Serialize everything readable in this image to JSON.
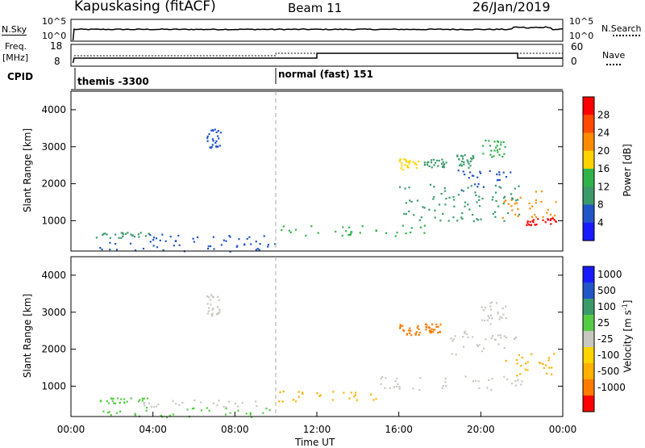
{
  "header": {
    "title": "Kapuskasing (fitACF)",
    "beam": "Beam 11",
    "date": "26/Jan/2019"
  },
  "top_panels": {
    "nsky_label": "N.Sky",
    "nsky_ticks": [
      "10^5",
      "10^0"
    ],
    "nsearch_label": "N.Search",
    "nsearch_ticks": [
      "10^5",
      "10^0"
    ],
    "freq_label_1": "Freq.",
    "freq_label_2": "[MHz]",
    "freq_ticks": [
      "18",
      "8"
    ],
    "nave_label": "Nave",
    "nave_ticks": [
      "60",
      "0"
    ],
    "cpid_label": "CPID",
    "cpid_segments": [
      {
        "start_hour": 0,
        "label": "themis -3300"
      },
      {
        "start_hour": 10,
        "label": "normal (fast) 151"
      }
    ]
  },
  "chart_data": [
    {
      "type": "heatmap",
      "name": "power-panel",
      "ylabel": "Slant Range [km]",
      "xlim": [
        0,
        24
      ],
      "ylim": [
        180,
        4500
      ],
      "y_ticks": [
        "1000",
        "2000",
        "3000",
        "4000"
      ],
      "colorbar": {
        "label": "Power [dB]",
        "ticks": [
          "4",
          "8",
          "12",
          "16",
          "20",
          "24",
          "28"
        ],
        "colors": [
          "#1a1aff",
          "#2255c8",
          "#3a9a6a",
          "#2fb34a",
          "#ffd400",
          "#ff8c00",
          "#ff4a00",
          "#ff0000"
        ]
      },
      "scatter_regions": [
        {
          "x": [
            1.1,
            10.0
          ],
          "y": [
            180,
            450
          ],
          "color": "#2255c8"
        },
        {
          "x": [
            1.2,
            3.8
          ],
          "y": [
            550,
            700
          ],
          "color": "#3a9a6a"
        },
        {
          "x": [
            3.5,
            9.5
          ],
          "y": [
            450,
            650
          ],
          "color": "#2255c8"
        },
        {
          "x": [
            10.0,
            17.5
          ],
          "y": [
            600,
            900
          ],
          "color": "#2fb34a"
        },
        {
          "x": [
            16.0,
            17.0
          ],
          "y": [
            2400,
            2700
          ],
          "color": "#ffd400"
        },
        {
          "x": [
            17.2,
            18.3
          ],
          "y": [
            2450,
            2700
          ],
          "color": "#3a9a6a"
        },
        {
          "x": [
            18.8,
            19.6
          ],
          "y": [
            2450,
            2800
          ],
          "color": "#3a9a6a"
        },
        {
          "x": [
            20.0,
            21.2
          ],
          "y": [
            2700,
            3200
          ],
          "color": "#2fb34a"
        },
        {
          "x": [
            18.8,
            21.5
          ],
          "y": [
            1800,
            2400
          ],
          "color": "#2255c8"
        },
        {
          "x": [
            21.0,
            23.8
          ],
          "y": [
            1100,
            1900
          ],
          "color": "#ff8c00"
        },
        {
          "x": [
            22.2,
            23.8
          ],
          "y": [
            900,
            1100
          ],
          "color": "#ff0000"
        },
        {
          "x": [
            6.6,
            7.3
          ],
          "y": [
            2900,
            3500
          ],
          "color": "#2255c8"
        },
        {
          "x": [
            16.0,
            22.0
          ],
          "y": [
            1000,
            2000
          ],
          "color": "#3a9a6a"
        }
      ]
    },
    {
      "type": "heatmap",
      "name": "velocity-panel",
      "ylabel": "Slant Range [km]",
      "xlabel": "Time UT",
      "xlim": [
        0,
        24
      ],
      "ylim": [
        180,
        4500
      ],
      "x_ticks": [
        "00:00",
        "04:00",
        "08:00",
        "12:00",
        "16:00",
        "20:00",
        "00:00"
      ],
      "y_ticks": [
        "1000",
        "2000",
        "3000",
        "4000"
      ],
      "colorbar": {
        "label": "Velocity [m s^-1]",
        "ticks": [
          "1000",
          "500",
          "100",
          "25",
          "-25",
          "-100",
          "-500",
          "-1000"
        ],
        "colors": [
          "#1a1aff",
          "#2255c8",
          "#3a9a6a",
          "#55cc44",
          "#c8c8c0",
          "#ffd400",
          "#ffb000",
          "#ff7a00",
          "#ff0000"
        ]
      },
      "scatter_regions": [
        {
          "x": [
            1.1,
            10.0
          ],
          "y": [
            180,
            450
          ],
          "color": "#55cc44"
        },
        {
          "x": [
            1.2,
            3.8
          ],
          "y": [
            550,
            700
          ],
          "color": "#55cc44"
        },
        {
          "x": [
            3.5,
            9.5
          ],
          "y": [
            450,
            650
          ],
          "color": "#c8c8c0"
        },
        {
          "x": [
            10.0,
            15.0
          ],
          "y": [
            600,
            900
          ],
          "color": "#ffb000"
        },
        {
          "x": [
            16.0,
            17.0
          ],
          "y": [
            2400,
            2700
          ],
          "color": "#ff7a00"
        },
        {
          "x": [
            17.2,
            18.0
          ],
          "y": [
            2450,
            2700
          ],
          "color": "#ff7a00"
        },
        {
          "x": [
            18.5,
            22.0
          ],
          "y": [
            1800,
            2500
          ],
          "color": "#c8c8c0"
        },
        {
          "x": [
            21.0,
            23.8
          ],
          "y": [
            1300,
            1900
          ],
          "color": "#ffb000"
        },
        {
          "x": [
            20.0,
            21.3
          ],
          "y": [
            2700,
            3300
          ],
          "color": "#c8c8c0"
        },
        {
          "x": [
            6.6,
            7.3
          ],
          "y": [
            2900,
            3500
          ],
          "color": "#c8c8c0"
        },
        {
          "x": [
            15.0,
            22.0
          ],
          "y": [
            900,
            1300
          ],
          "color": "#c8c8c0"
        }
      ]
    }
  ]
}
